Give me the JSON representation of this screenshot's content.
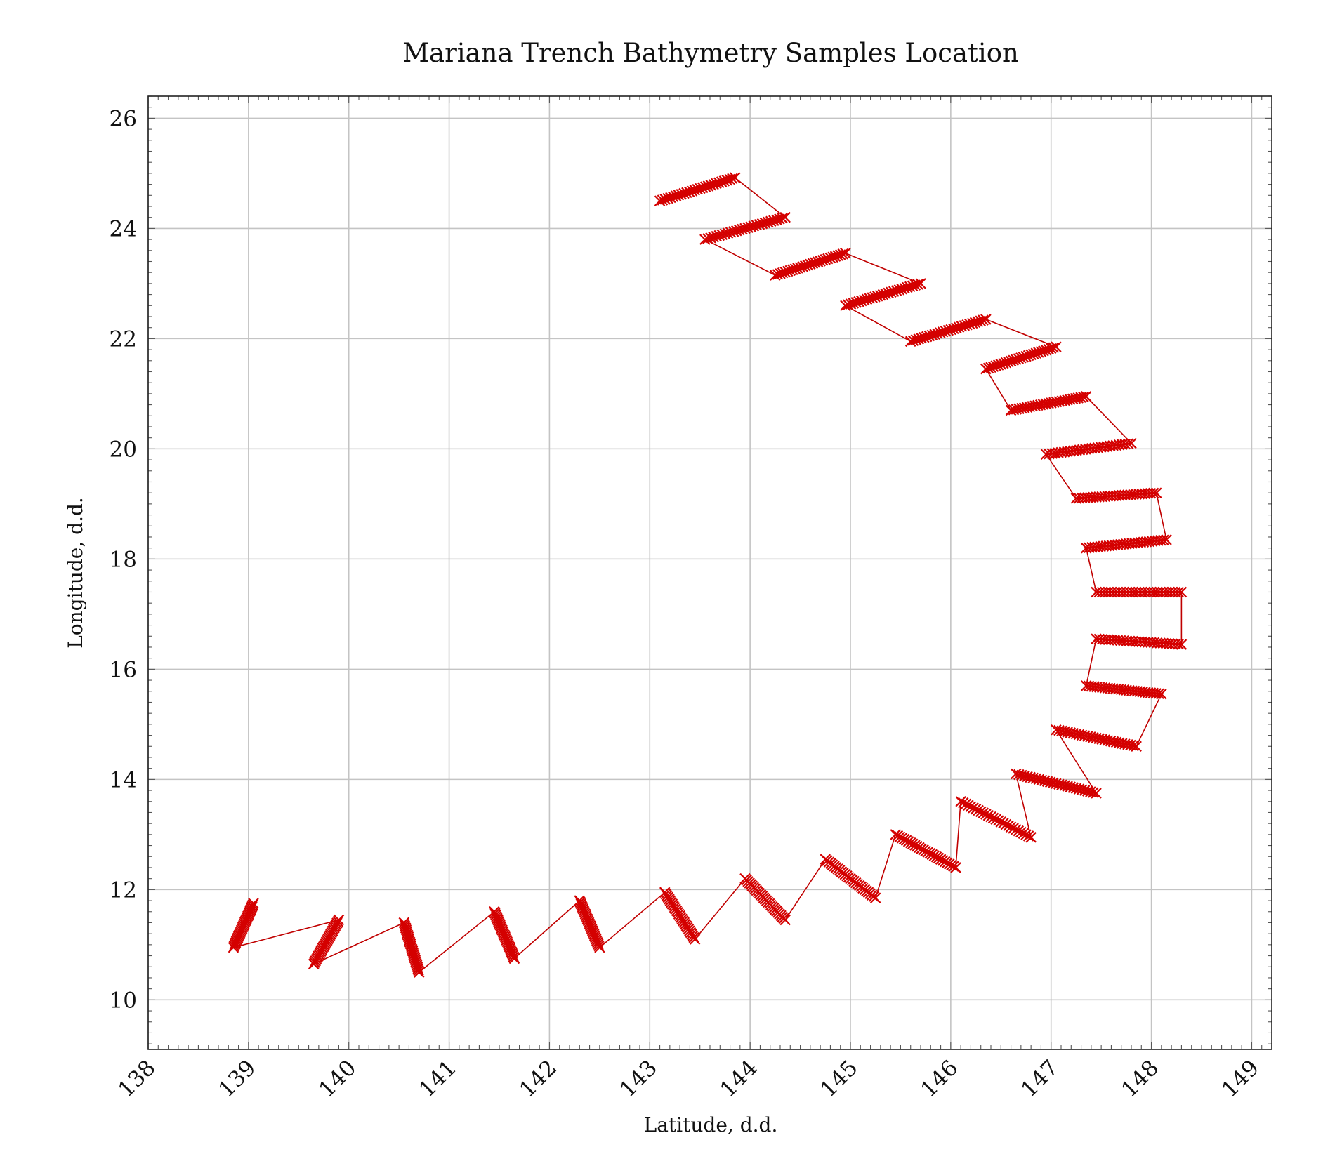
{
  "chart_data": {
    "type": "scatter",
    "title": "Mariana Trench Bathymetry Samples Location",
    "xlabel": "Latitude, d.d.",
    "ylabel": "Longitude, d.d.",
    "xlim": [
      138,
      149.2
    ],
    "ylim": [
      9.1,
      26.4
    ],
    "xticks": [
      138,
      139,
      140,
      141,
      142,
      143,
      144,
      145,
      146,
      147,
      148,
      149
    ],
    "yticks": [
      10,
      12,
      14,
      16,
      18,
      20,
      22,
      24,
      26
    ],
    "grid": true,
    "marker": "x",
    "color": "#d40000",
    "series": [
      {
        "profiles": [
          [
            [
              143.1,
              24.5
            ],
            [
              143.85,
              24.92
            ]
          ],
          [
            [
              144.35,
              24.2
            ],
            [
              143.55,
              23.8
            ]
          ],
          [
            [
              144.25,
              23.15
            ],
            [
              144.95,
              23.55
            ]
          ],
          [
            [
              145.7,
              23.0
            ],
            [
              144.95,
              22.6
            ]
          ],
          [
            [
              145.6,
              21.95
            ],
            [
              146.35,
              22.35
            ]
          ],
          [
            [
              147.05,
              21.85
            ],
            [
              146.35,
              21.45
            ]
          ],
          [
            [
              146.6,
              20.7
            ],
            [
              147.35,
              20.95
            ]
          ],
          [
            [
              147.8,
              20.1
            ],
            [
              146.95,
              19.9
            ]
          ],
          [
            [
              147.25,
              19.1
            ],
            [
              148.05,
              19.2
            ]
          ],
          [
            [
              148.15,
              18.35
            ],
            [
              147.35,
              18.2
            ]
          ],
          [
            [
              147.45,
              17.4
            ],
            [
              148.3,
              17.4
            ]
          ],
          [
            [
              148.3,
              16.45
            ],
            [
              147.45,
              16.55
            ]
          ],
          [
            [
              147.35,
              15.7
            ],
            [
              148.1,
              15.55
            ]
          ],
          [
            [
              147.85,
              14.6
            ],
            [
              147.05,
              14.9
            ]
          ],
          [
            [
              147.45,
              13.75
            ],
            [
              146.65,
              14.1
            ]
          ],
          [
            [
              146.8,
              12.95
            ],
            [
              146.1,
              13.6
            ]
          ],
          [
            [
              146.05,
              12.4
            ],
            [
              145.45,
              13.0
            ]
          ],
          [
            [
              145.25,
              11.85
            ],
            [
              144.75,
              12.55
            ]
          ],
          [
            [
              144.35,
              11.45
            ],
            [
              143.95,
              12.2
            ]
          ],
          [
            [
              143.45,
              11.1
            ],
            [
              143.15,
              11.95
            ]
          ],
          [
            [
              142.5,
              10.95
            ],
            [
              142.3,
              11.8
            ]
          ],
          [
            [
              141.65,
              10.75
            ],
            [
              141.45,
              11.6
            ]
          ],
          [
            [
              140.7,
              10.5
            ],
            [
              140.55,
              11.4
            ]
          ],
          [
            [
              139.65,
              10.65
            ],
            [
              139.9,
              11.45
            ]
          ],
          [
            [
              138.85,
              10.95
            ],
            [
              139.05,
              11.75
            ]
          ]
        ]
      }
    ]
  }
}
